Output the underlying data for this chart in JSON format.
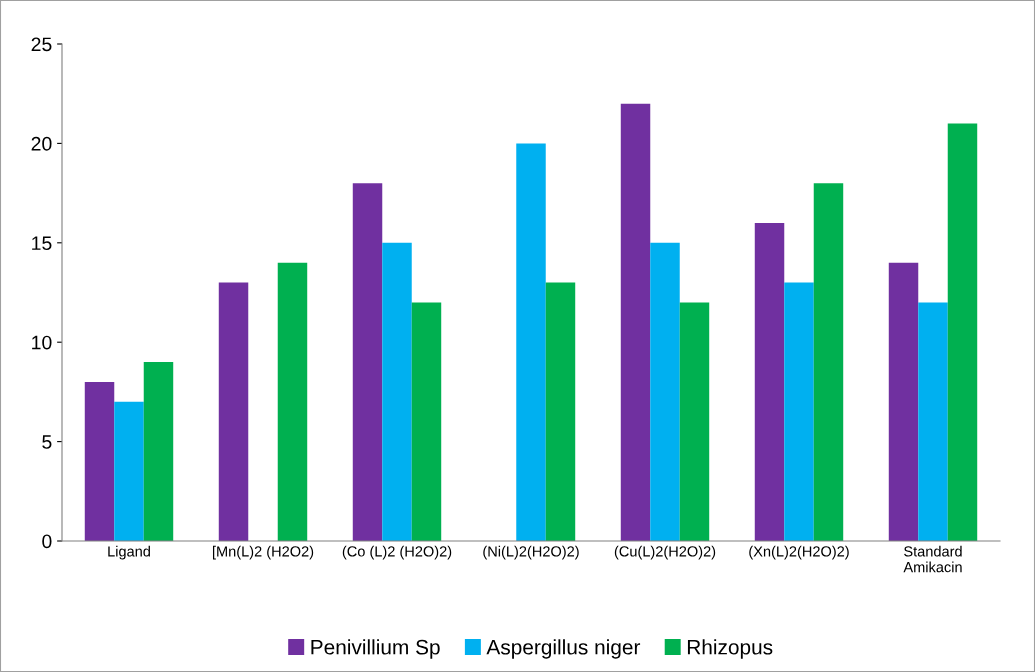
{
  "chart_data": {
    "type": "bar",
    "categories": [
      "Ligand",
      "[Mn(L)2 (H2O2)",
      "(Co (L)2 (H2O)2)",
      "(Ni(L)2(H2O)2)",
      "(Cu(L)2(H2O)2)",
      "(Xn(L)2(H2O)2)",
      "Standard\nAmikacin"
    ],
    "series": [
      {
        "name": "Penivillium Sp",
        "color": "#7030a0",
        "values": [
          8,
          13,
          18,
          null,
          22,
          16,
          14
        ]
      },
      {
        "name": "Aspergillus niger",
        "color": "#00b0f0",
        "values": [
          7,
          null,
          15,
          20,
          15,
          13,
          12
        ]
      },
      {
        "name": "Rhizopus",
        "color": "#00b050",
        "values": [
          9,
          14,
          12,
          13,
          12,
          18,
          21
        ]
      }
    ],
    "ylim": [
      0,
      25
    ],
    "yticks": [
      0,
      5,
      10,
      15,
      20,
      25
    ],
    "grid": false,
    "legend": "bottom"
  }
}
